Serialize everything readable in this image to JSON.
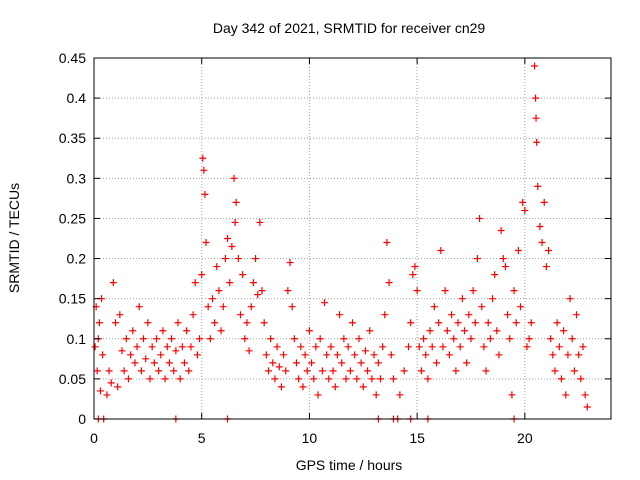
{
  "chart_data": {
    "type": "scatter",
    "title": "Day 342 of 2021, SRMTID for receiver cn29",
    "xlabel": "GPS time / hours",
    "ylabel": "SRMTID / TECUs",
    "xlim": [
      0,
      24
    ],
    "ylim": [
      0,
      0.45
    ],
    "x_ticks": [
      "0",
      "5",
      "10",
      "15",
      "20"
    ],
    "y_ticks": [
      "0",
      "0.05",
      "0.1",
      "0.15",
      "0.2",
      "0.25",
      "0.3",
      "0.35",
      "0.4",
      "0.45"
    ],
    "grid": true,
    "series": [
      {
        "name": "SRMTID",
        "marker": "plus",
        "color": "#ff0000",
        "points": [
          [
            0.05,
            0.09
          ],
          [
            0.1,
            0.14
          ],
          [
            0.15,
            0.06
          ],
          [
            0.2,
            0.1
          ],
          [
            0.25,
            0.12
          ],
          [
            0.3,
            0.035
          ],
          [
            0.35,
            0.15
          ],
          [
            0.4,
            0.08
          ],
          [
            0.6,
            0.03
          ],
          [
            0.7,
            0.06
          ],
          [
            0.8,
            0.045
          ],
          [
            0.9,
            0.17
          ],
          [
            1.0,
            0.12
          ],
          [
            1.1,
            0.04
          ],
          [
            1.2,
            0.13
          ],
          [
            1.3,
            0.085
          ],
          [
            1.4,
            0.06
          ],
          [
            1.5,
            0.1
          ],
          [
            1.6,
            0.05
          ],
          [
            1.7,
            0.08
          ],
          [
            1.8,
            0.11
          ],
          [
            1.9,
            0.07
          ],
          [
            2.0,
            0.09
          ],
          [
            2.1,
            0.14
          ],
          [
            2.2,
            0.06
          ],
          [
            2.3,
            0.1
          ],
          [
            2.4,
            0.075
          ],
          [
            2.5,
            0.12
          ],
          [
            2.6,
            0.05
          ],
          [
            2.7,
            0.09
          ],
          [
            2.8,
            0.07
          ],
          [
            2.9,
            0.1
          ],
          [
            3.0,
            0.06
          ],
          [
            3.1,
            0.08
          ],
          [
            3.2,
            0.11
          ],
          [
            3.3,
            0.05
          ],
          [
            3.4,
            0.09
          ],
          [
            3.5,
            0.07
          ],
          [
            3.6,
            0.1
          ],
          [
            3.7,
            0.06
          ],
          [
            3.8,
            0.085
          ],
          [
            3.9,
            0.12
          ],
          [
            4.0,
            0.05
          ],
          [
            4.1,
            0.09
          ],
          [
            4.2,
            0.07
          ],
          [
            4.3,
            0.11
          ],
          [
            4.4,
            0.06
          ],
          [
            4.5,
            0.09
          ],
          [
            4.6,
            0.13
          ],
          [
            4.7,
            0.17
          ],
          [
            4.8,
            0.08
          ],
          [
            4.9,
            0.1
          ],
          [
            5.0,
            0.18
          ],
          [
            5.05,
            0.325
          ],
          [
            5.1,
            0.31
          ],
          [
            5.15,
            0.28
          ],
          [
            5.2,
            0.22
          ],
          [
            5.3,
            0.14
          ],
          [
            5.4,
            0.1
          ],
          [
            5.5,
            0.15
          ],
          [
            5.6,
            0.12
          ],
          [
            5.7,
            0.19
          ],
          [
            5.8,
            0.16
          ],
          [
            5.9,
            0.11
          ],
          [
            6.0,
            0.14
          ],
          [
            6.1,
            0.2
          ],
          [
            6.2,
            0.225
          ],
          [
            6.3,
            0.17
          ],
          [
            6.4,
            0.215
          ],
          [
            6.5,
            0.3
          ],
          [
            6.55,
            0.245
          ],
          [
            6.6,
            0.27
          ],
          [
            6.7,
            0.2
          ],
          [
            6.8,
            0.13
          ],
          [
            6.9,
            0.18
          ],
          [
            7.0,
            0.1
          ],
          [
            7.1,
            0.12
          ],
          [
            7.2,
            0.085
          ],
          [
            7.3,
            0.14
          ],
          [
            7.4,
            0.17
          ],
          [
            7.5,
            0.2
          ],
          [
            7.6,
            0.155
          ],
          [
            7.7,
            0.245
          ],
          [
            7.8,
            0.16
          ],
          [
            7.9,
            0.12
          ],
          [
            8.0,
            0.08
          ],
          [
            8.1,
            0.06
          ],
          [
            8.2,
            0.1
          ],
          [
            8.3,
            0.07
          ],
          [
            8.4,
            0.05
          ],
          [
            8.5,
            0.09
          ],
          [
            8.6,
            0.065
          ],
          [
            8.7,
            0.04
          ],
          [
            8.8,
            0.08
          ],
          [
            8.9,
            0.06
          ],
          [
            9.0,
            0.16
          ],
          [
            9.1,
            0.195
          ],
          [
            9.2,
            0.14
          ],
          [
            9.3,
            0.1
          ],
          [
            9.4,
            0.07
          ],
          [
            9.5,
            0.05
          ],
          [
            9.6,
            0.09
          ],
          [
            9.7,
            0.04
          ],
          [
            9.8,
            0.08
          ],
          [
            9.9,
            0.06
          ],
          [
            10.0,
            0.11
          ],
          [
            10.1,
            0.07
          ],
          [
            10.2,
            0.05
          ],
          [
            10.3,
            0.09
          ],
          [
            10.4,
            0.03
          ],
          [
            10.5,
            0.1
          ],
          [
            10.6,
            0.06
          ],
          [
            10.7,
            0.145
          ],
          [
            10.8,
            0.08
          ],
          [
            10.9,
            0.05
          ],
          [
            11.0,
            0.09
          ],
          [
            11.1,
            0.06
          ],
          [
            11.2,
            0.04
          ],
          [
            11.3,
            0.08
          ],
          [
            11.4,
            0.13
          ],
          [
            11.5,
            0.07
          ],
          [
            11.6,
            0.1
          ],
          [
            11.7,
            0.05
          ],
          [
            11.8,
            0.09
          ],
          [
            11.9,
            0.06
          ],
          [
            12.0,
            0.12
          ],
          [
            12.1,
            0.08
          ],
          [
            12.2,
            0.05
          ],
          [
            12.3,
            0.1
          ],
          [
            12.4,
            0.07
          ],
          [
            12.5,
            0.04
          ],
          [
            12.6,
            0.085
          ],
          [
            12.7,
            0.06
          ],
          [
            12.8,
            0.11
          ],
          [
            12.9,
            0.05
          ],
          [
            13.0,
            0.08
          ],
          [
            13.1,
            0.03
          ],
          [
            13.2,
            0.07
          ],
          [
            13.3,
            0.05
          ],
          [
            13.4,
            0.09
          ],
          [
            13.5,
            0.13
          ],
          [
            13.6,
            0.22
          ],
          [
            13.7,
            0.17
          ],
          [
            13.8,
            0.08
          ],
          [
            13.9,
            0.05
          ],
          [
            14.2,
            0.03
          ],
          [
            14.4,
            0.06
          ],
          [
            14.6,
            0.09
          ],
          [
            14.7,
            0.12
          ],
          [
            14.8,
            0.18
          ],
          [
            14.9,
            0.19
          ],
          [
            15.0,
            0.16
          ],
          [
            15.1,
            0.09
          ],
          [
            15.2,
            0.06
          ],
          [
            15.3,
            0.1
          ],
          [
            15.4,
            0.08
          ],
          [
            15.5,
            0.05
          ],
          [
            15.6,
            0.11
          ],
          [
            15.7,
            0.09
          ],
          [
            15.8,
            0.14
          ],
          [
            15.9,
            0.07
          ],
          [
            16.0,
            0.12
          ],
          [
            16.1,
            0.21
          ],
          [
            16.2,
            0.09
          ],
          [
            16.3,
            0.16
          ],
          [
            16.4,
            0.11
          ],
          [
            16.5,
            0.08
          ],
          [
            16.6,
            0.13
          ],
          [
            16.7,
            0.1
          ],
          [
            16.8,
            0.06
          ],
          [
            16.9,
            0.12
          ],
          [
            17.0,
            0.09
          ],
          [
            17.1,
            0.15
          ],
          [
            17.2,
            0.11
          ],
          [
            17.3,
            0.07
          ],
          [
            17.4,
            0.13
          ],
          [
            17.5,
            0.1
          ],
          [
            17.6,
            0.16
          ],
          [
            17.7,
            0.12
          ],
          [
            17.8,
            0.2
          ],
          [
            17.9,
            0.25
          ],
          [
            18.0,
            0.14
          ],
          [
            18.1,
            0.09
          ],
          [
            18.2,
            0.06
          ],
          [
            18.3,
            0.12
          ],
          [
            18.4,
            0.1
          ],
          [
            18.5,
            0.15
          ],
          [
            18.6,
            0.18
          ],
          [
            18.7,
            0.11
          ],
          [
            18.8,
            0.08
          ],
          [
            18.9,
            0.235
          ],
          [
            19.0,
            0.2
          ],
          [
            19.1,
            0.19
          ],
          [
            19.2,
            0.13
          ],
          [
            19.3,
            0.1
          ],
          [
            19.4,
            0.03
          ],
          [
            19.5,
            0.16
          ],
          [
            19.6,
            0.12
          ],
          [
            19.7,
            0.21
          ],
          [
            19.8,
            0.14
          ],
          [
            19.9,
            0.27
          ],
          [
            20.0,
            0.26
          ],
          [
            20.1,
            0.09
          ],
          [
            20.2,
            0.1
          ],
          [
            20.3,
            0.12
          ],
          [
            20.45,
            0.44
          ],
          [
            20.5,
            0.4
          ],
          [
            20.52,
            0.375
          ],
          [
            20.55,
            0.345
          ],
          [
            20.6,
            0.29
          ],
          [
            20.7,
            0.24
          ],
          [
            20.8,
            0.22
          ],
          [
            20.9,
            0.27
          ],
          [
            21.0,
            0.19
          ],
          [
            21.1,
            0.21
          ],
          [
            21.2,
            0.1
          ],
          [
            21.3,
            0.08
          ],
          [
            21.4,
            0.06
          ],
          [
            21.5,
            0.12
          ],
          [
            21.6,
            0.09
          ],
          [
            21.7,
            0.05
          ],
          [
            21.8,
            0.11
          ],
          [
            21.9,
            0.03
          ],
          [
            22.0,
            0.08
          ],
          [
            22.1,
            0.15
          ],
          [
            22.2,
            0.1
          ],
          [
            22.3,
            0.06
          ],
          [
            22.4,
            0.13
          ],
          [
            22.5,
            0.08
          ],
          [
            22.6,
            0.05
          ],
          [
            22.7,
            0.09
          ],
          [
            22.8,
            0.03
          ],
          [
            22.9,
            0.015
          ],
          [
            0.2,
            0.0
          ],
          [
            0.45,
            0.0
          ],
          [
            3.8,
            0.0
          ],
          [
            6.2,
            0.0
          ],
          [
            13.2,
            0.0
          ],
          [
            13.9,
            0.0
          ],
          [
            14.1,
            0.0
          ],
          [
            14.7,
            0.0
          ],
          [
            15.5,
            0.0
          ],
          [
            19.5,
            0.0
          ]
        ]
      }
    ]
  }
}
